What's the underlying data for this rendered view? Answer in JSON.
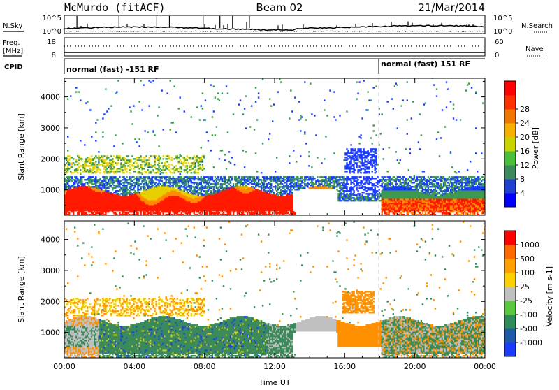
{
  "header": {
    "station": "McMurdo (fitACF)",
    "beam": "Beam 02",
    "date": "21/Mar/2014"
  },
  "nsky_panel": {
    "left_label": "N.Sky",
    "left_ticks": [
      "10^5",
      "10^0"
    ],
    "right_label": "N.Search",
    "right_ticks": [
      "10^5",
      "10^0"
    ]
  },
  "freq_panel": {
    "left_label_line1": "Freq.",
    "left_label_line2": "[MHz]",
    "left_ticks": [
      "18",
      "8"
    ],
    "right_label": "Nave",
    "right_ticks": [
      "60",
      "0"
    ]
  },
  "cpid_panel": {
    "label": "CPID",
    "segments": [
      {
        "text": "normal (fast) -151 RF",
        "start_hour": 0
      },
      {
        "text": "normal (fast) 151 RF",
        "start_hour": 18
      }
    ]
  },
  "chart_data": [
    {
      "type": "heatmap",
      "name": "power",
      "xlabel": "Time UT",
      "ylabel": "Slant Range [km]",
      "xlim": [
        0,
        24
      ],
      "ylim": [
        180,
        4600
      ],
      "x_ticks": [
        "00:00",
        "04:00",
        "08:00",
        "12:00",
        "16:00",
        "20:00",
        "00:00"
      ],
      "y_ticks": [
        1000,
        2000,
        3000,
        4000
      ],
      "colorbar": {
        "label": "Power [dB]",
        "tick_labels": [
          "4",
          "8",
          "12",
          "16",
          "20",
          "24",
          "28"
        ],
        "range": [
          0,
          30
        ],
        "colors": [
          "#0000ff",
          "#2040d0",
          "#3a8a5a",
          "#4bbf3a",
          "#c8d400",
          "#f6b000",
          "#f07800",
          "#ff3000",
          "#ff0000"
        ]
      }
    },
    {
      "type": "heatmap",
      "name": "velocity",
      "xlabel": "Time UT",
      "ylabel": "Slant Range [km]",
      "xlim": [
        0,
        24
      ],
      "ylim": [
        180,
        4600
      ],
      "x_ticks": [
        "00:00",
        "04:00",
        "08:00",
        "12:00",
        "16:00",
        "20:00",
        "00:00"
      ],
      "y_ticks": [
        1000,
        2000,
        3000,
        4000
      ],
      "colorbar": {
        "label": "Velocity [m s-1]",
        "tick_labels": [
          "1000",
          "500",
          "100",
          "25",
          "-25",
          "-100",
          "-500",
          "-1000"
        ],
        "colors": [
          "#1a3cff",
          "#1e5aa8",
          "#2f8a5a",
          "#5ac83c",
          "#c0c0c0",
          "#ffd000",
          "#ffa000",
          "#ff6a00",
          "#ff0000"
        ]
      }
    }
  ],
  "colors": {
    "power_red": "#ff1a00",
    "power_orange": "#ff8c00",
    "power_yellow": "#e8d000",
    "power_green": "#3e9a50",
    "power_blue": "#1a3cff",
    "vel_green": "#3a8a5a",
    "vel_grey": "#c0c0c0",
    "vel_orange": "#ff9000"
  }
}
